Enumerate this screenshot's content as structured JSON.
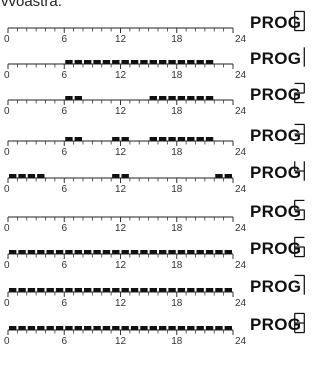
{
  "top_text": "vvoastra.",
  "axis": {
    "tick_labels": [
      "0",
      "6",
      "12",
      "18",
      "24"
    ]
  },
  "programs": [
    {
      "label": "PROG",
      "digit": "0",
      "active_hours": []
    },
    {
      "label": "PROG",
      "digit": "1",
      "active_hours": [
        [
          6,
          22
        ]
      ]
    },
    {
      "label": "PROG",
      "digit": "2",
      "active_hours": [
        [
          6,
          8
        ],
        [
          15,
          22
        ]
      ]
    },
    {
      "label": "PROG",
      "digit": "3",
      "active_hours": [
        [
          6,
          8
        ],
        [
          11,
          13
        ],
        [
          15,
          22
        ]
      ]
    },
    {
      "label": "PROG",
      "digit": "4",
      "active_hours": [
        [
          0,
          4
        ],
        [
          11,
          13
        ],
        [
          22,
          24
        ]
      ]
    },
    {
      "label": "PROG",
      "digit": "5",
      "active_hours": []
    },
    {
      "label": "PROG",
      "digit": "6",
      "active_hours": [
        [
          0,
          24
        ]
      ]
    },
    {
      "label": "PROG",
      "digit": "7",
      "active_hours": [
        [
          0,
          24
        ]
      ]
    },
    {
      "label": "PROG",
      "digit": "8",
      "active_hours": [
        [
          0,
          24
        ]
      ]
    }
  ]
}
